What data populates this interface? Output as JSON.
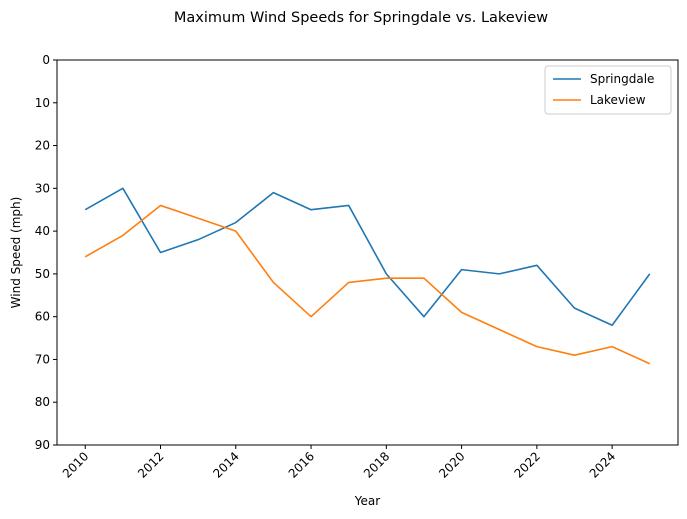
{
  "chart_data": {
    "type": "line",
    "title": "Maximum Wind Speeds for Springdale vs. Lakeview",
    "xlabel": "Year",
    "ylabel": "Wind Speed (mph)",
    "x": [
      2010,
      2011,
      2012,
      2013,
      2014,
      2015,
      2016,
      2017,
      2018,
      2019,
      2020,
      2021,
      2022,
      2023,
      2024,
      2025
    ],
    "xlim": [
      2009.25,
      2025.75
    ],
    "ylim": [
      0,
      90
    ],
    "y_inverted": true,
    "x_ticks": [
      2010,
      2012,
      2014,
      2016,
      2018,
      2020,
      2022,
      2024
    ],
    "y_ticks": [
      0,
      10,
      20,
      30,
      40,
      50,
      60,
      70,
      80,
      90
    ],
    "x_tick_rotation": 45,
    "grid": false,
    "legend_position": "top-right",
    "series": [
      {
        "name": "Springdale",
        "color": "#1f77b4",
        "values": [
          35,
          30,
          45,
          42,
          38,
          31,
          35,
          34,
          50,
          60,
          49,
          50,
          48,
          58,
          62,
          50
        ]
      },
      {
        "name": "Lakeview",
        "color": "#ff7f0e",
        "values": [
          46,
          41,
          34,
          37,
          40,
          52,
          60,
          52,
          51,
          51,
          59,
          63,
          67,
          69,
          67,
          71
        ]
      }
    ]
  }
}
